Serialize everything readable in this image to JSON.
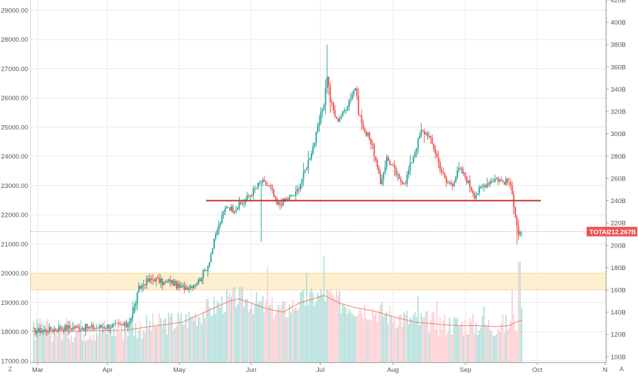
{
  "chart_data": {
    "type": "candlestick",
    "left_axis": {
      "ticks": [
        "29000.00",
        "28000.00",
        "27000.00",
        "26000.00",
        "25000.00",
        "24000.00",
        "23000.00",
        "22000.00",
        "21000.00",
        "20000.00",
        "19000.00",
        "18000.00",
        "17000.00"
      ],
      "range": [
        16950,
        29350
      ]
    },
    "right_axis": {
      "ticks": [
        "420B",
        "400B",
        "380B",
        "360B",
        "340B",
        "320B",
        "300B",
        "280B",
        "260B",
        "240B",
        "220B",
        "200B",
        "180B",
        "160B",
        "140B",
        "120B",
        "100B"
      ],
      "range": [
        95,
        420
      ]
    },
    "x_axis": {
      "ticks": [
        "Mar",
        "Apr",
        "May",
        "Jun",
        "Jul",
        "Aug",
        "Sep",
        "Oct",
        "N"
      ]
    },
    "last_value_label": {
      "name": "TOTAL",
      "value": "212.267B"
    },
    "support_line_level": 240,
    "support_zone": [
      160,
      175
    ],
    "colors": {
      "up": "#26a69a",
      "down": "#ef5350",
      "grid": "#e8e8e8",
      "support": "#c62828",
      "zone": "#fdf0cf",
      "ma": "#ef7b63"
    },
    "corner_labels": {
      "left": "Z",
      "right": "A"
    },
    "anchors": [
      [
        0,
        123
      ],
      [
        10,
        124
      ],
      [
        20,
        126
      ],
      [
        30,
        126.5
      ],
      [
        40,
        126
      ],
      [
        50,
        128
      ],
      [
        60,
        128
      ],
      [
        64,
        138
      ],
      [
        68,
        161
      ],
      [
        72,
        167
      ],
      [
        78,
        170
      ],
      [
        84,
        166
      ],
      [
        88,
        168
      ],
      [
        94,
        162
      ],
      [
        100,
        163
      ],
      [
        106,
        168
      ],
      [
        112,
        182
      ],
      [
        118,
        214
      ],
      [
        124,
        236
      ],
      [
        128,
        232
      ],
      [
        134,
        238
      ],
      [
        140,
        247
      ],
      [
        146,
        257
      ],
      [
        152,
        252
      ],
      [
        156,
        236
      ],
      [
        162,
        241
      ],
      [
        168,
        246
      ],
      [
        174,
        267
      ],
      [
        180,
        293
      ],
      [
        186,
        328
      ],
      [
        188,
        353
      ],
      [
        190,
        330
      ],
      [
        194,
        312
      ],
      [
        198,
        318
      ],
      [
        202,
        330
      ],
      [
        206,
        342
      ],
      [
        208,
        320
      ],
      [
        212,
        300
      ],
      [
        214,
        302
      ],
      [
        218,
        282
      ],
      [
        222,
        255
      ],
      [
        226,
        278
      ],
      [
        230,
        270
      ],
      [
        234,
        258
      ],
      [
        238,
        258
      ],
      [
        242,
        276
      ],
      [
        248,
        302
      ],
      [
        252,
        300
      ],
      [
        256,
        288
      ],
      [
        260,
        270
      ],
      [
        264,
        256
      ],
      [
        268,
        256
      ],
      [
        272,
        268
      ],
      [
        276,
        262
      ],
      [
        282,
        245
      ],
      [
        288,
        254
      ],
      [
        292,
        258
      ],
      [
        296,
        260
      ],
      [
        300,
        257
      ],
      [
        304,
        257
      ],
      [
        306,
        245
      ],
      [
        308,
        228
      ],
      [
        310,
        210
      ],
      [
        312,
        212.3
      ]
    ],
    "volume": {
      "ma_anchors": [
        [
          0,
          123
        ],
        [
          30,
          123
        ],
        [
          60,
          124
        ],
        [
          70,
          126
        ],
        [
          80,
          128
        ],
        [
          96,
          131
        ],
        [
          110,
          140
        ],
        [
          126,
          150
        ],
        [
          132,
          152
        ],
        [
          140,
          148
        ],
        [
          150,
          143
        ],
        [
          160,
          140
        ],
        [
          170,
          148
        ],
        [
          186,
          155
        ],
        [
          196,
          148
        ],
        [
          206,
          144
        ],
        [
          218,
          141
        ],
        [
          230,
          136
        ],
        [
          244,
          131
        ],
        [
          260,
          129
        ],
        [
          272,
          128
        ],
        [
          282,
          128
        ],
        [
          296,
          127
        ],
        [
          304,
          128
        ],
        [
          312,
          133
        ]
      ],
      "spikes": [
        [
          64,
          150
        ],
        [
          150,
          180
        ],
        [
          175,
          175
        ],
        [
          186,
          190
        ],
        [
          246,
          155
        ],
        [
          258,
          150
        ],
        [
          288,
          145
        ],
        [
          306,
          160
        ],
        [
          310,
          185
        ],
        [
          311,
          185
        ]
      ]
    }
  }
}
